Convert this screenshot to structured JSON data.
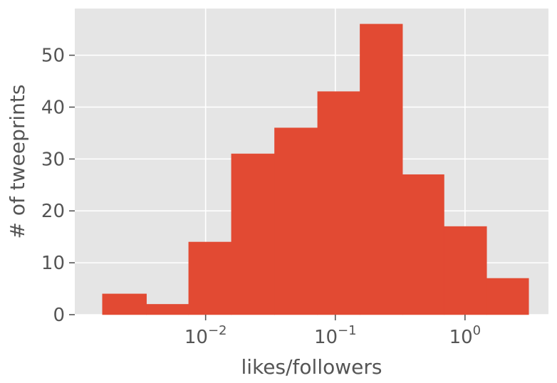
{
  "chart_data": {
    "type": "bar",
    "style": "histogram",
    "x_scale": "log",
    "xlabel": "likes/followers",
    "ylabel": "# of tweeprints",
    "xlim": [
      0.00098,
      4.4
    ],
    "ylim": [
      0,
      59
    ],
    "grid": true,
    "colors": {
      "bar": "#E24A33",
      "background": "#E5E5E5",
      "grid": "#FFFFFF"
    },
    "y_ticks": [
      {
        "value": 0,
        "label": "0"
      },
      {
        "value": 10,
        "label": "10"
      },
      {
        "value": 20,
        "label": "20"
      },
      {
        "value": 30,
        "label": "30"
      },
      {
        "value": 40,
        "label": "40"
      },
      {
        "value": 50,
        "label": "50"
      }
    ],
    "x_ticks": [
      {
        "value": 0.01,
        "base": "10",
        "exp": "−2"
      },
      {
        "value": 0.1,
        "base": "10",
        "exp": "−1"
      },
      {
        "value": 1,
        "base": "10",
        "exp": "0"
      }
    ],
    "bins": [
      {
        "x0": 0.0016,
        "x1": 0.0035,
        "value": 4
      },
      {
        "x0": 0.0035,
        "x1": 0.0074,
        "value": 2
      },
      {
        "x0": 0.0074,
        "x1": 0.0158,
        "value": 14
      },
      {
        "x0": 0.0158,
        "x1": 0.034,
        "value": 31
      },
      {
        "x0": 0.034,
        "x1": 0.073,
        "value": 36
      },
      {
        "x0": 0.073,
        "x1": 0.155,
        "value": 43
      },
      {
        "x0": 0.155,
        "x1": 0.33,
        "value": 56
      },
      {
        "x0": 0.33,
        "x1": 0.69,
        "value": 27
      },
      {
        "x0": 0.69,
        "x1": 1.47,
        "value": 17
      },
      {
        "x0": 1.47,
        "x1": 3.1,
        "value": 7
      }
    ]
  }
}
